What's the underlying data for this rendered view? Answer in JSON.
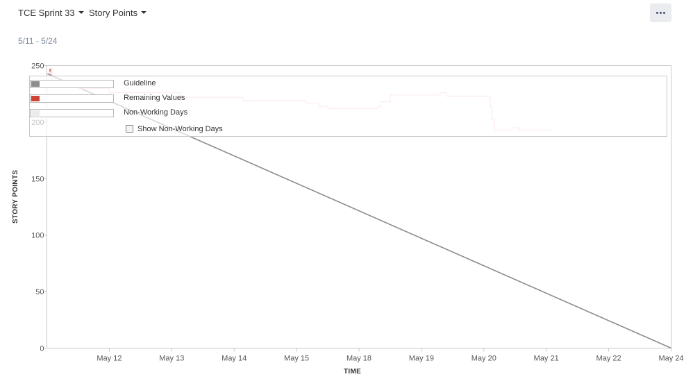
{
  "header": {
    "sprint_label": "TCE Sprint 33",
    "metric_label": "Story Points",
    "date_range": "5/11 - 5/24"
  },
  "colors": {
    "guideline": "#8c8c8c",
    "remaining": "#d04437",
    "remaining_line": "#f5c9c5",
    "non_working": "#ebebeb"
  },
  "legend": {
    "items": [
      {
        "label": "Guideline",
        "color": "#8c8c8c",
        "name": "legend-guideline"
      },
      {
        "label": "Remaining Values",
        "color": "#d04437",
        "name": "legend-remaining"
      },
      {
        "label": "Non-Working Days",
        "color": "#ebebeb",
        "name": "legend-nonworking"
      }
    ],
    "checkbox_label": "Show Non-Working Days",
    "checkbox_checked": false
  },
  "chart_data": {
    "type": "line",
    "xlabel": "TIME",
    "ylabel": "STORY POINTS",
    "categories": [
      "May 12",
      "May 13",
      "May 14",
      "May 15",
      "May 18",
      "May 19",
      "May 20",
      "May 21",
      "May 22",
      "May 24"
    ],
    "x_range": [
      0.0,
      10.0
    ],
    "ylim": [
      0,
      250
    ],
    "yticks": [
      0,
      50,
      100,
      150,
      200,
      250
    ],
    "series": [
      {
        "name": "Guideline",
        "points": [
          [
            0.0,
            243
          ],
          [
            10.0,
            0
          ]
        ]
      },
      {
        "name": "Remaining Values",
        "points": [
          [
            0.0,
            243
          ],
          [
            0.05,
            243
          ],
          [
            0.05,
            247
          ],
          [
            0.08,
            247
          ],
          [
            0.08,
            232
          ],
          [
            0.5,
            232
          ],
          [
            0.5,
            230
          ],
          [
            1.0,
            230
          ],
          [
            1.0,
            226
          ],
          [
            2.15,
            226
          ],
          [
            2.15,
            222
          ],
          [
            3.15,
            222
          ],
          [
            3.15,
            219
          ],
          [
            4.15,
            219
          ],
          [
            4.15,
            217
          ],
          [
            4.35,
            217
          ],
          [
            4.35,
            214
          ],
          [
            4.5,
            214
          ],
          [
            4.5,
            212
          ],
          [
            5.3,
            212
          ],
          [
            5.3,
            214
          ],
          [
            5.35,
            214
          ],
          [
            5.35,
            218
          ],
          [
            5.5,
            218
          ],
          [
            5.5,
            224
          ],
          [
            6.3,
            224
          ],
          [
            6.3,
            226
          ],
          [
            6.4,
            226
          ],
          [
            6.4,
            223
          ],
          [
            7.1,
            223
          ],
          [
            7.1,
            214
          ],
          [
            7.13,
            214
          ],
          [
            7.13,
            202
          ],
          [
            7.17,
            202
          ],
          [
            7.17,
            193
          ],
          [
            7.45,
            193
          ],
          [
            7.45,
            195
          ],
          [
            7.55,
            195
          ],
          [
            7.55,
            193
          ],
          [
            8.1,
            193
          ]
        ]
      }
    ],
    "legend_position": "top-left",
    "grid": false
  }
}
